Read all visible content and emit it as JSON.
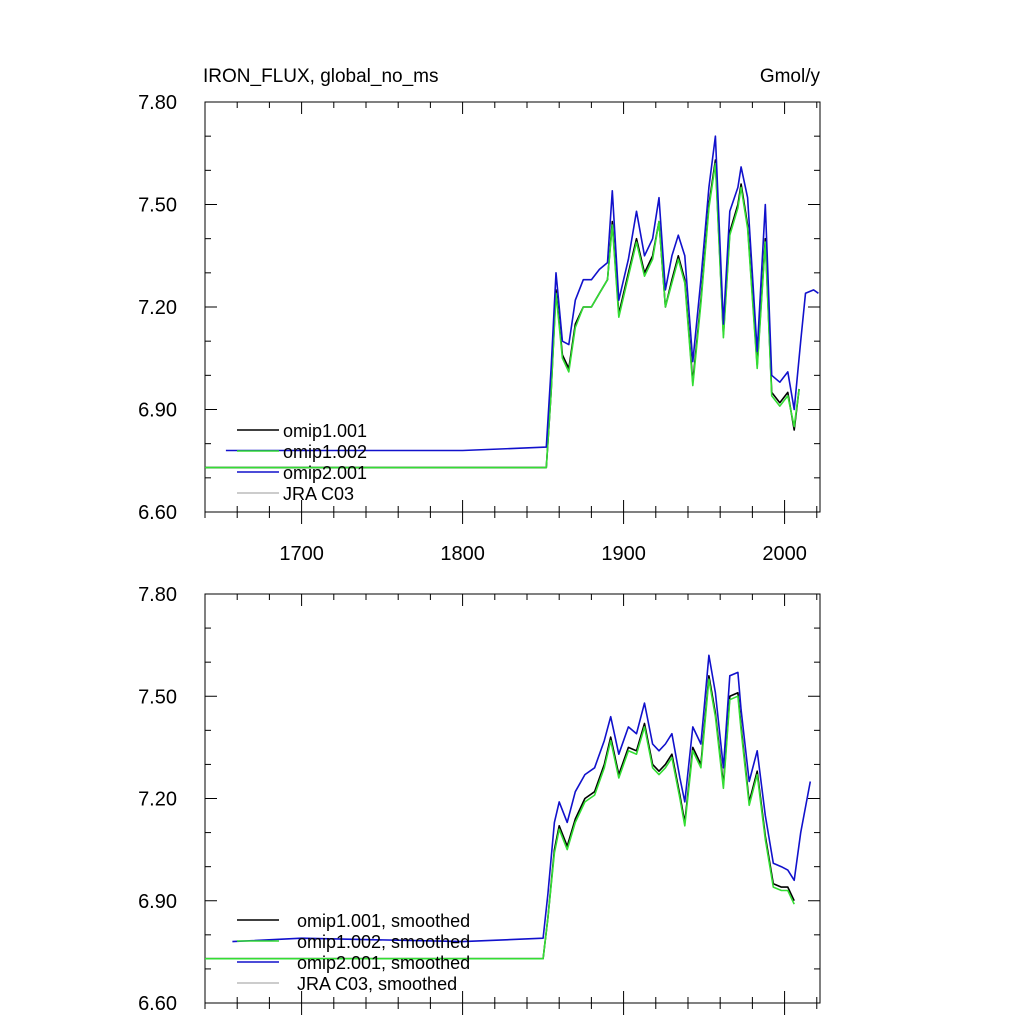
{
  "chart_data": [
    {
      "type": "line",
      "title": "IRON_FLUX, global_no_ms",
      "units": "Gmol/y",
      "xlim": [
        1640,
        2022
      ],
      "ylim": [
        6.6,
        7.8
      ],
      "xticks": [
        1700,
        1800,
        1900,
        2000
      ],
      "xtick_labels": [
        "1700",
        "1800",
        "1900",
        "2000"
      ],
      "yticks": [
        6.6,
        6.9,
        7.2,
        7.5,
        7.8
      ],
      "ytick_labels": [
        "6.60",
        "6.90",
        "7.20",
        "7.50",
        "7.80"
      ],
      "grid": false,
      "legend_position": "bottom-left",
      "series": [
        {
          "name": "omip1.001",
          "color": "#000000",
          "x": [
            1640,
            1700,
            1800,
            1852,
            1855,
            1858,
            1862,
            1866,
            1870,
            1875,
            1880,
            1885,
            1890,
            1893,
            1897,
            1903,
            1908,
            1913,
            1918,
            1922,
            1926,
            1930,
            1934,
            1938,
            1943,
            1948,
            1953,
            1957,
            1962,
            1966,
            1971,
            1973,
            1977,
            1983,
            1988,
            1992,
            1997,
            2002,
            2006,
            2009
          ],
          "y": [
            6.73,
            6.73,
            6.73,
            6.73,
            6.95,
            7.25,
            7.06,
            7.02,
            7.15,
            7.2,
            7.2,
            7.24,
            7.28,
            7.45,
            7.18,
            7.3,
            7.4,
            7.3,
            7.35,
            7.45,
            7.2,
            7.28,
            7.35,
            7.28,
            6.98,
            7.22,
            7.5,
            7.63,
            7.12,
            7.42,
            7.5,
            7.56,
            7.44,
            7.03,
            7.4,
            6.95,
            6.92,
            6.95,
            6.84,
            6.96
          ]
        },
        {
          "name": "omip1.002",
          "color": "#33dd33",
          "x": [
            1640,
            1700,
            1800,
            1852,
            1855,
            1858,
            1862,
            1866,
            1870,
            1875,
            1880,
            1885,
            1890,
            1893,
            1897,
            1903,
            1908,
            1913,
            1918,
            1922,
            1926,
            1930,
            1934,
            1938,
            1943,
            1948,
            1953,
            1957,
            1962,
            1966,
            1971,
            1973,
            1977,
            1983,
            1988,
            1992,
            1997,
            2002,
            2006,
            2009
          ],
          "y": [
            6.73,
            6.73,
            6.73,
            6.73,
            6.95,
            7.24,
            7.05,
            7.01,
            7.14,
            7.2,
            7.2,
            7.24,
            7.28,
            7.44,
            7.17,
            7.29,
            7.39,
            7.29,
            7.34,
            7.45,
            7.2,
            7.27,
            7.34,
            7.27,
            6.97,
            7.21,
            7.49,
            7.62,
            7.11,
            7.41,
            7.49,
            7.55,
            7.43,
            7.02,
            7.39,
            6.94,
            6.91,
            6.94,
            6.85,
            6.96
          ]
        },
        {
          "name": "omip2.001",
          "color": "#1111cc",
          "x": [
            1653,
            1700,
            1800,
            1852,
            1855,
            1858,
            1862,
            1866,
            1870,
            1875,
            1880,
            1885,
            1890,
            1893,
            1897,
            1903,
            1908,
            1913,
            1918,
            1922,
            1926,
            1930,
            1934,
            1938,
            1943,
            1948,
            1953,
            1957,
            1962,
            1966,
            1971,
            1973,
            1977,
            1983,
            1988,
            1992,
            1997,
            2002,
            2006,
            2010,
            2013,
            2018,
            2021
          ],
          "y": [
            6.78,
            6.78,
            6.78,
            6.79,
            7.02,
            7.3,
            7.1,
            7.09,
            7.22,
            7.28,
            7.28,
            7.31,
            7.33,
            7.54,
            7.22,
            7.34,
            7.48,
            7.35,
            7.4,
            7.52,
            7.25,
            7.35,
            7.41,
            7.35,
            7.04,
            7.28,
            7.55,
            7.7,
            7.15,
            7.48,
            7.55,
            7.61,
            7.52,
            7.07,
            7.5,
            7.0,
            6.98,
            7.01,
            6.9,
            7.1,
            7.24,
            7.25,
            7.24
          ]
        },
        {
          "name": "JRA C03",
          "color": "#bbbbbb",
          "x": [],
          "y": []
        }
      ]
    },
    {
      "type": "line",
      "title": "",
      "xlim": [
        1640,
        2022
      ],
      "ylim": [
        6.6,
        7.8
      ],
      "yticks": [
        6.6,
        6.9,
        7.2,
        7.5,
        7.8
      ],
      "ytick_labels": [
        "6.60",
        "6.90",
        "7.20",
        "7.50",
        "7.80"
      ],
      "grid": false,
      "legend_position": "bottom-left",
      "series": [
        {
          "name": "omip1.001, smoothed",
          "color": "#000000",
          "x": [
            1640,
            1700,
            1800,
            1850,
            1853,
            1857,
            1860,
            1865,
            1870,
            1876,
            1882,
            1888,
            1892,
            1897,
            1903,
            1908,
            1913,
            1918,
            1922,
            1926,
            1930,
            1935,
            1938,
            1943,
            1948,
            1953,
            1957,
            1962,
            1966,
            1971,
            1973,
            1978,
            1983,
            1988,
            1993,
            1998,
            2002,
            2006
          ],
          "y": [
            6.73,
            6.73,
            6.73,
            6.73,
            6.85,
            7.05,
            7.12,
            7.06,
            7.14,
            7.2,
            7.22,
            7.3,
            7.38,
            7.27,
            7.35,
            7.34,
            7.42,
            7.3,
            7.28,
            7.3,
            7.33,
            7.21,
            7.13,
            7.35,
            7.3,
            7.56,
            7.45,
            7.24,
            7.5,
            7.51,
            7.41,
            7.19,
            7.28,
            7.09,
            6.95,
            6.94,
            6.94,
            6.9
          ]
        },
        {
          "name": "omip1.002, smoothed",
          "color": "#33dd33",
          "x": [
            1640,
            1700,
            1800,
            1850,
            1853,
            1857,
            1860,
            1865,
            1870,
            1876,
            1882,
            1888,
            1892,
            1897,
            1903,
            1908,
            1913,
            1918,
            1922,
            1926,
            1930,
            1935,
            1938,
            1943,
            1948,
            1953,
            1957,
            1962,
            1966,
            1971,
            1973,
            1978,
            1983,
            1988,
            1993,
            1998,
            2002,
            2006
          ],
          "y": [
            6.73,
            6.73,
            6.73,
            6.73,
            6.85,
            7.04,
            7.11,
            7.05,
            7.13,
            7.19,
            7.21,
            7.29,
            7.37,
            7.26,
            7.34,
            7.33,
            7.41,
            7.29,
            7.27,
            7.29,
            7.32,
            7.2,
            7.12,
            7.34,
            7.29,
            7.55,
            7.44,
            7.23,
            7.49,
            7.5,
            7.4,
            7.18,
            7.27,
            7.08,
            6.94,
            6.93,
            6.93,
            6.89
          ]
        },
        {
          "name": "omip2.001, smoothed",
          "color": "#1111cc",
          "x": [
            1657,
            1700,
            1800,
            1850,
            1853,
            1857,
            1860,
            1865,
            1870,
            1876,
            1882,
            1888,
            1892,
            1897,
            1903,
            1908,
            1913,
            1918,
            1922,
            1926,
            1930,
            1935,
            1938,
            1943,
            1948,
            1953,
            1957,
            1962,
            1966,
            1971,
            1973,
            1978,
            1983,
            1988,
            1993,
            1998,
            2002,
            2006,
            2010,
            2016
          ],
          "y": [
            6.78,
            6.79,
            6.78,
            6.79,
            6.92,
            7.13,
            7.19,
            7.13,
            7.22,
            7.27,
            7.29,
            7.37,
            7.44,
            7.33,
            7.41,
            7.39,
            7.48,
            7.36,
            7.34,
            7.36,
            7.39,
            7.26,
            7.19,
            7.41,
            7.36,
            7.62,
            7.51,
            7.29,
            7.56,
            7.57,
            7.46,
            7.25,
            7.34,
            7.15,
            7.01,
            7.0,
            6.99,
            6.96,
            7.1,
            7.25
          ]
        },
        {
          "name": "JRA C03, smoothed",
          "color": "#bbbbbb",
          "x": [],
          "y": []
        }
      ]
    }
  ]
}
